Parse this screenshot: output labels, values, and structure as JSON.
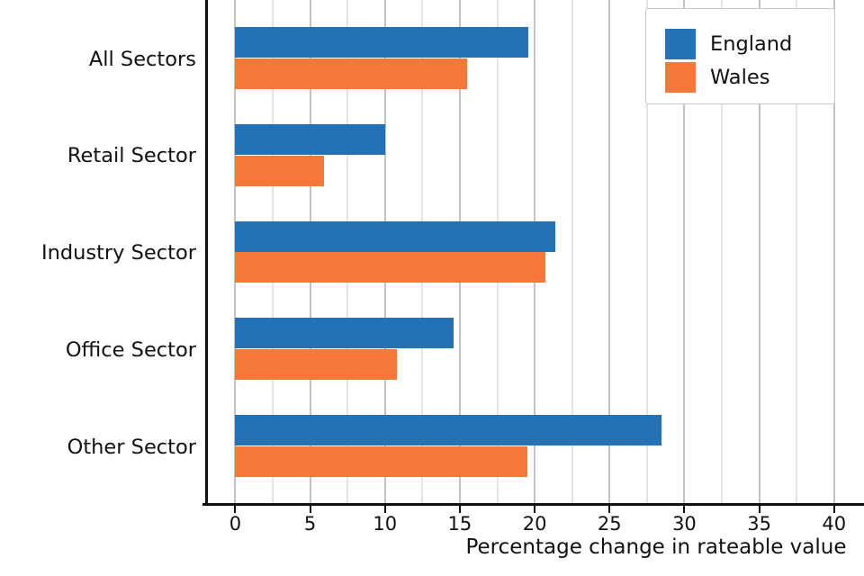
{
  "chart_data": {
    "type": "bar",
    "orientation": "horizontal",
    "title": "",
    "categories": [
      "All Sectors",
      "Retail Sector",
      "Industry Sector",
      "Office Sector",
      "Other Sector"
    ],
    "series": [
      {
        "name": "England",
        "color": "#2272b5",
        "values": [
          19.6,
          10.0,
          21.4,
          14.6,
          28.5
        ]
      },
      {
        "name": "Wales",
        "color": "#f47838",
        "values": [
          15.5,
          5.9,
          20.7,
          10.8,
          19.5
        ]
      }
    ],
    "xlabel": "Percentage change in rateable value",
    "ylabel": "",
    "xticks": [
      0,
      5,
      10,
      15,
      20,
      25,
      30,
      35,
      40
    ],
    "xlim": [
      -2,
      42
    ],
    "minor_grid_step": 2.5,
    "grid": true,
    "legend": {
      "position": "upper-right",
      "items": [
        "England",
        "Wales"
      ]
    }
  },
  "colors": {
    "england_blue": "#2272b5",
    "wales_orange": "#f47838",
    "grid_major": "#c2c2c2",
    "grid_minor": "#e4e4e4",
    "axis_black": "#111111"
  }
}
